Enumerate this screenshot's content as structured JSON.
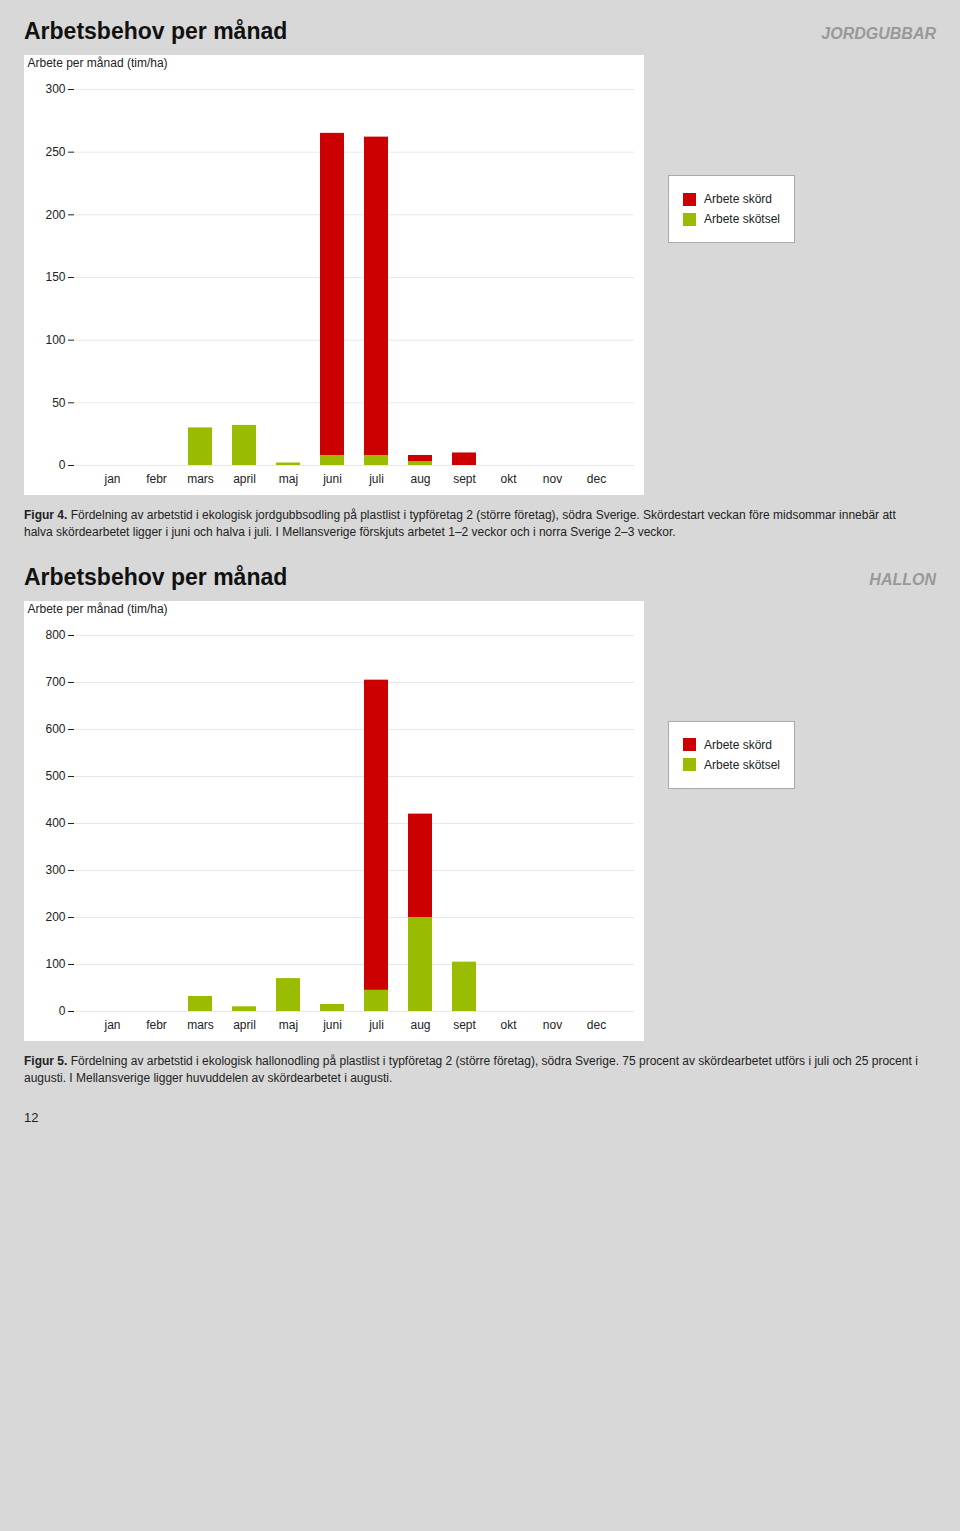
{
  "chart_data": [
    {
      "type": "bar",
      "stacked": true,
      "grid": true,
      "title": "Arbetsbehov per månad",
      "subtitle": "JORDGUBBAR",
      "ylabel": "Arbete per månad (tim/ha)",
      "categories": [
        "jan",
        "febr",
        "mars",
        "april",
        "maj",
        "juni",
        "juli",
        "aug",
        "sept",
        "okt",
        "nov",
        "dec"
      ],
      "series": [
        {
          "name": "Arbete skötsel",
          "color": "#99BB00",
          "values": [
            0,
            0,
            30,
            32,
            2,
            8,
            8,
            3,
            0,
            0,
            0,
            0
          ]
        },
        {
          "name": "Arbete skörd",
          "color": "#CC0000",
          "values": [
            0,
            0,
            0,
            0,
            0,
            257,
            254,
            5,
            10,
            0,
            0,
            0
          ]
        }
      ],
      "ylim": [
        0,
        300
      ],
      "yticks": [
        0,
        50,
        100,
        150,
        200,
        250,
        300
      ],
      "caption_label": "Figur 4.",
      "caption": "Fördelning av arbetstid i ekologisk jordgubbsodling på plastlist i typföretag 2 (större företag), södra Sverige. Skördestart veckan före midsommar innebär att halva skördearbetet ligger i juni och halva i juli. I Mellansverige förskjuts arbetet 1–2 veckor och i norra Sverige 2–3 veckor."
    },
    {
      "type": "bar",
      "stacked": true,
      "grid": true,
      "title": "Arbetsbehov per månad",
      "subtitle": "HALLON",
      "ylabel": "Arbete per månad (tim/ha)",
      "categories": [
        "jan",
        "febr",
        "mars",
        "april",
        "maj",
        "juni",
        "juli",
        "aug",
        "sept",
        "okt",
        "nov",
        "dec"
      ],
      "series": [
        {
          "name": "Arbete skötsel",
          "color": "#99BB00",
          "values": [
            0,
            0,
            32,
            10,
            70,
            15,
            45,
            200,
            105,
            0,
            0,
            0
          ]
        },
        {
          "name": "Arbete skörd",
          "color": "#CC0000",
          "values": [
            0,
            0,
            0,
            0,
            0,
            0,
            660,
            220,
            0,
            0,
            0,
            0
          ]
        }
      ],
      "ylim": [
        0,
        800
      ],
      "yticks": [
        0,
        100,
        200,
        300,
        400,
        500,
        600,
        700,
        800
      ],
      "caption_label": "Figur 5.",
      "caption": "Fördelning av arbetstid i ekologisk hallonodling på plastlist i typföretag 2 (större företag), södra Sverige. 75 procent av skördearbetet utförs i juli och 25 procent i augusti. I Mellansverige ligger huvuddelen av skördearbetet i augusti."
    }
  ],
  "page_number": "12"
}
